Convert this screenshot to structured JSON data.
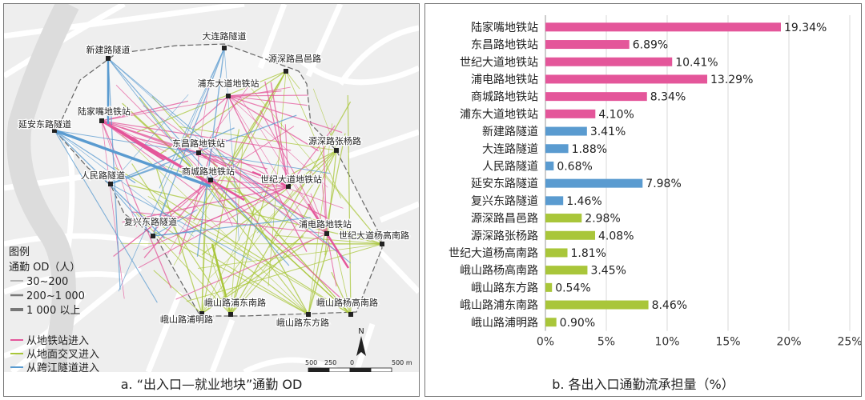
{
  "map": {
    "legend_title": "图例",
    "legend_od_title": "通勤 OD（人）",
    "legend_widths": [
      "30~200",
      "200~1 000",
      "1 000 以上"
    ],
    "legend_sources": [
      "从地铁站进入",
      "从地面交叉进入",
      "从跨江隧道进入"
    ],
    "source_colors": [
      "#e4569a",
      "#a9c63a",
      "#5a9bd0"
    ],
    "scale_labels": [
      "500",
      "250",
      "0",
      "500 m"
    ],
    "north_label": "N",
    "nodes": [
      {
        "label": "大连路隧道",
        "type": "tunnel"
      },
      {
        "label": "新建路隧道",
        "type": "tunnel"
      },
      {
        "label": "源深路昌邑路",
        "type": "ground"
      },
      {
        "label": "浦东大道地铁站",
        "type": "metro"
      },
      {
        "label": "陆家嘴地铁站",
        "type": "metro"
      },
      {
        "label": "延安东路隧道",
        "type": "tunnel"
      },
      {
        "label": "东昌路地铁站",
        "type": "metro"
      },
      {
        "label": "源深路张杨路",
        "type": "ground"
      },
      {
        "label": "商城路地铁站",
        "type": "metro"
      },
      {
        "label": "人民路隧道",
        "type": "tunnel"
      },
      {
        "label": "世纪大道地铁站",
        "type": "metro"
      },
      {
        "label": "复兴东路隧道",
        "type": "tunnel"
      },
      {
        "label": "浦电路地铁站",
        "type": "metro"
      },
      {
        "label": "世纪大道杨高南路",
        "type": "ground"
      },
      {
        "label": "峨山路浦东南路",
        "type": "ground"
      },
      {
        "label": "峨山路杨高南路",
        "type": "ground"
      },
      {
        "label": "峨山路浦明路",
        "type": "ground"
      },
      {
        "label": "峨山路东方路",
        "type": "ground"
      }
    ],
    "caption": "a. “出入口—就业地块”通勤 OD"
  },
  "chart_data": {
    "type": "bar",
    "orientation": "horizontal",
    "categories": [
      "陆家嘴地铁站",
      "东昌路地铁站",
      "世纪大道地铁站",
      "浦电路地铁站",
      "商城路地铁站",
      "浦东大道地铁站",
      "新建路隧道",
      "大连路隧道",
      "人民路隧道",
      "延安东路隧道",
      "复兴东路隧道",
      "源深路昌邑路",
      "源深路张杨路",
      "世纪大道杨高南路",
      "峨山路杨高南路",
      "峨山路东方路",
      "峨山路浦东南路",
      "峨山路浦明路"
    ],
    "values": [
      19.34,
      6.89,
      10.41,
      13.29,
      8.34,
      4.1,
      3.41,
      1.88,
      0.68,
      7.98,
      1.46,
      2.98,
      4.08,
      1.81,
      3.45,
      0.54,
      8.46,
      0.9
    ],
    "value_labels": [
      "19.34%",
      "6.89%",
      "10.41%",
      "13.29%",
      "8.34%",
      "4.10%",
      "3.41%",
      "1.88%",
      "0.68%",
      "7.98%",
      "1.46%",
      "2.98%",
      "4.08%",
      "1.81%",
      "3.45%",
      "0.54%",
      "8.46%",
      "0.90%"
    ],
    "bar_colors": [
      "#e4569a",
      "#e4569a",
      "#e4569a",
      "#e4569a",
      "#e4569a",
      "#e4569a",
      "#5a9bd0",
      "#5a9bd0",
      "#5a9bd0",
      "#5a9bd0",
      "#5a9bd0",
      "#a9c63a",
      "#a9c63a",
      "#a9c63a",
      "#a9c63a",
      "#a9c63a",
      "#a9c63a",
      "#a9c63a"
    ],
    "xlim": [
      0,
      25
    ],
    "xticks": [
      0,
      5,
      10,
      15,
      20,
      25
    ],
    "xtick_labels": [
      "0%",
      "5%",
      "10%",
      "15%",
      "20%",
      "25%"
    ],
    "grid": true,
    "caption": "b. 各出入口通勤流承担量（%）"
  }
}
